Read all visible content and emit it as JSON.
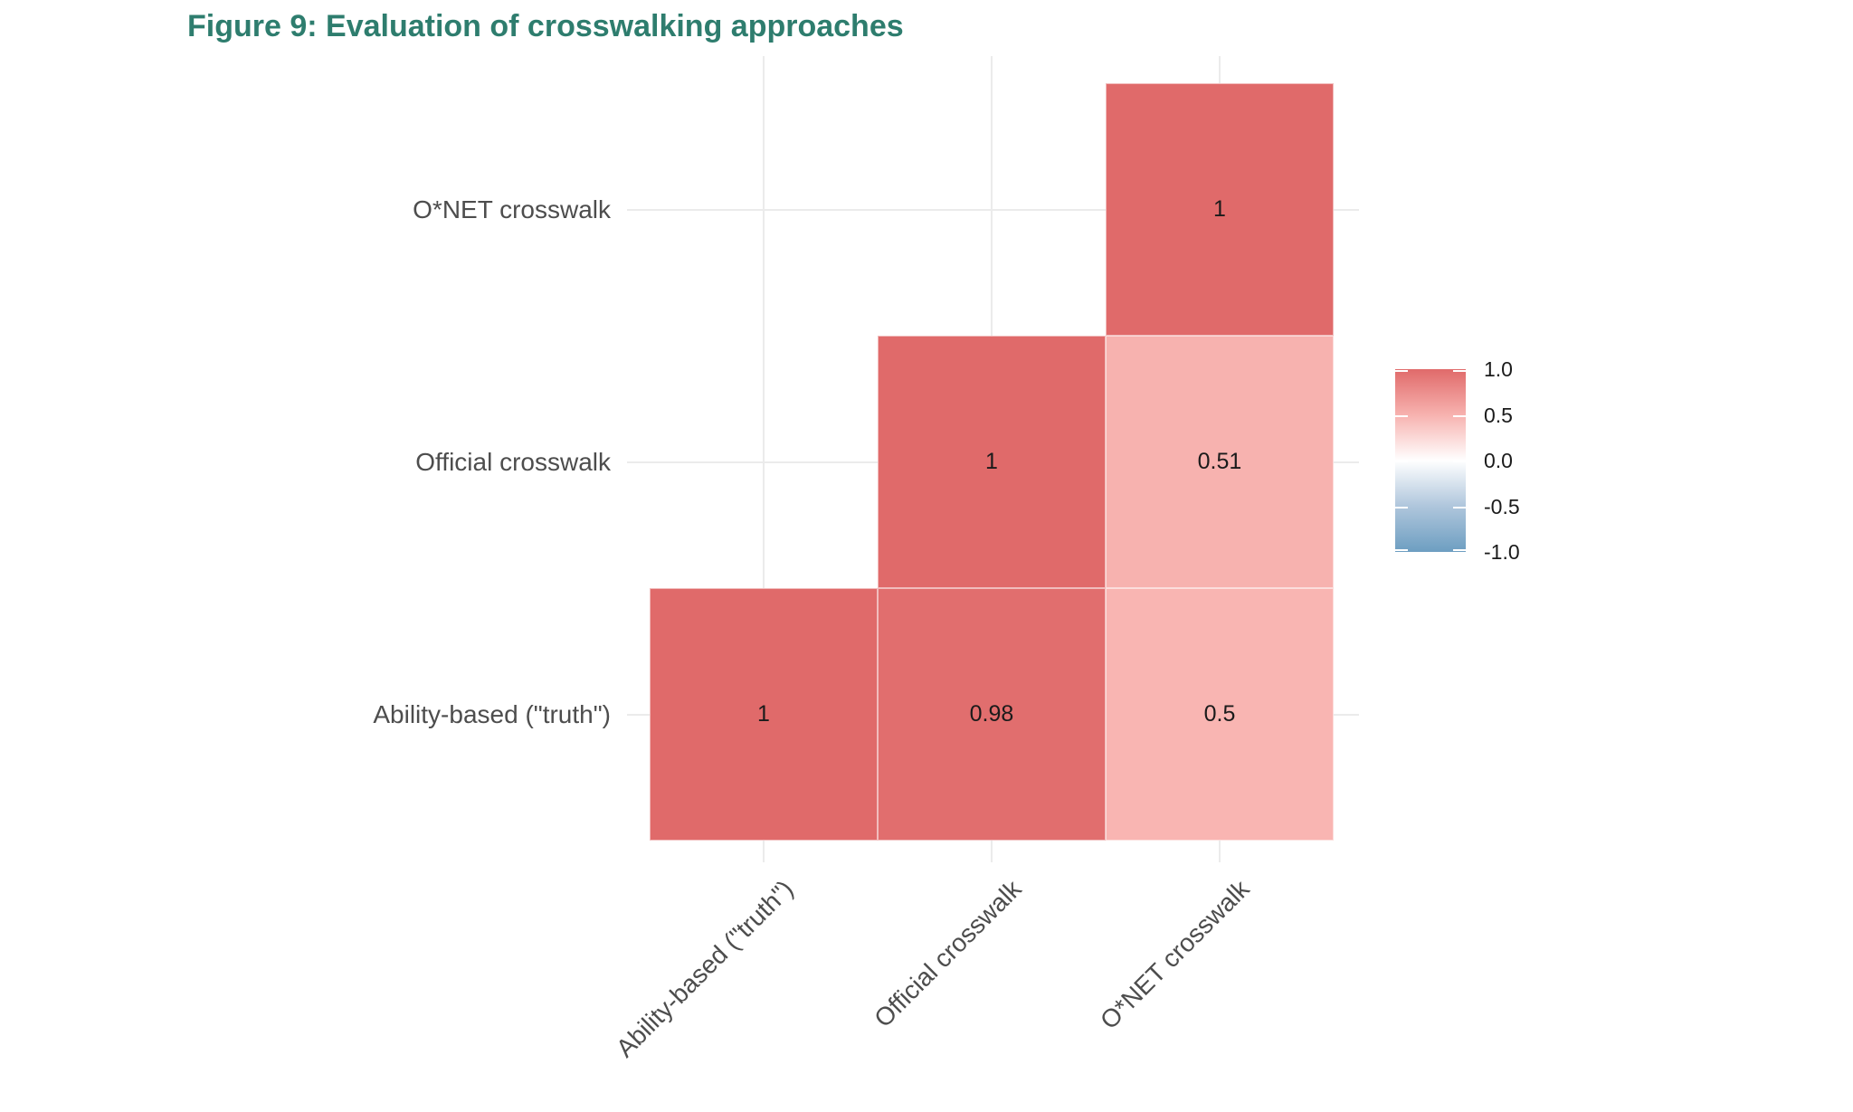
{
  "title": {
    "text": "Figure 9: Evaluation of crosswalking approaches",
    "color": "#2E7D6E"
  },
  "chart_data": {
    "type": "heatmap",
    "title": "Figure 9: Evaluation of crosswalking approaches",
    "subtitle": "",
    "x_categories": [
      "Ability-based (\"truth\")",
      "Official crosswalk",
      "O*NET crosswalk"
    ],
    "y_categories_top_to_bottom": [
      "O*NET crosswalk",
      "Official crosswalk",
      "Ability-based (\"truth\")"
    ],
    "cells": [
      {
        "row": "O*NET crosswalk",
        "col": "O*NET crosswalk",
        "value": 1,
        "label": "1",
        "fill": "#E06A6A"
      },
      {
        "row": "Official crosswalk",
        "col": "Official crosswalk",
        "value": 1,
        "label": "1",
        "fill": "#E06A6A"
      },
      {
        "row": "Official crosswalk",
        "col": "O*NET crosswalk",
        "value": 0.51,
        "label": "0.51",
        "fill": "#F7B2AF"
      },
      {
        "row": "Ability-based (\"truth\")",
        "col": "Ability-based (\"truth\")",
        "value": 1,
        "label": "1",
        "fill": "#E06A6A"
      },
      {
        "row": "Ability-based (\"truth\")",
        "col": "Official crosswalk",
        "value": 0.98,
        "label": "0.98",
        "fill": "#E16E6E"
      },
      {
        "row": "Ability-based (\"truth\")",
        "col": "O*NET crosswalk",
        "value": 0.5,
        "label": "0.5",
        "fill": "#F9B5B2"
      }
    ],
    "colorbar": {
      "position": "right",
      "domain": [
        -1,
        1
      ],
      "ticks": [
        "1.0",
        "0.5",
        "0.0",
        "-0.5",
        "-1.0"
      ],
      "high_color": "#E06A6A",
      "mid_color": "#FFFFFF",
      "low_color": "#6D9EC1",
      "gradient_stops": [
        "#E06A6A",
        "#F7B2AF",
        "#FFFFFF",
        "#AFC6DC",
        "#6D9EC1"
      ]
    },
    "grid": true,
    "gridline_color": "#EBEBEB",
    "axis_text_color": "#4D4D4D",
    "value_text_color": "#1B1B1B",
    "panel_background": "#FFFFFF"
  }
}
